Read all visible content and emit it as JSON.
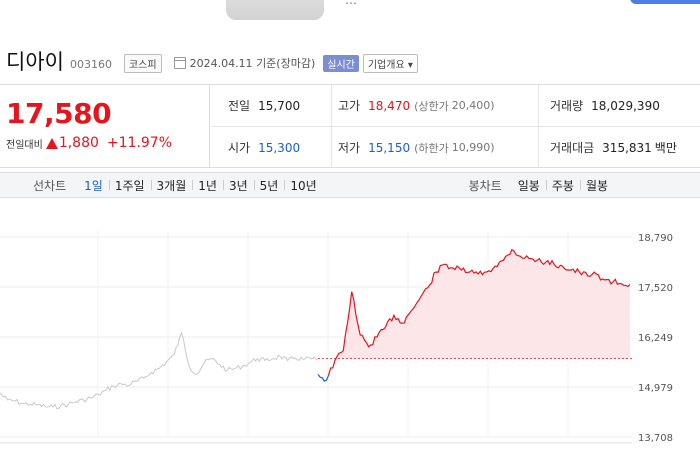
{
  "banner": {
    "text": "…"
  },
  "stock": {
    "name": "디아이",
    "code": "003160",
    "market": "코스피",
    "date": "2024.04.11",
    "date_suffix": "기준(장마감)",
    "live_badge": "실시간",
    "info_button": "기업개요"
  },
  "quote": {
    "price": "17,580",
    "change_label": "전일대비",
    "change_value": "1,880",
    "change_percent": "+11.97%",
    "direction": "up",
    "prev_close": {
      "label": "전일",
      "value": "15,700"
    },
    "high": {
      "label": "고가",
      "value": "18,470",
      "limit_label": "(상한가",
      "limit_value": "20,400)"
    },
    "volume": {
      "label": "거래량",
      "value": "18,029,390"
    },
    "open": {
      "label": "시가",
      "value": "15,300"
    },
    "low": {
      "label": "저가",
      "value": "15,150",
      "limit_label": "(하한가",
      "limit_value": "10,990)"
    },
    "amount": {
      "label": "거래대금",
      "value": "315,831",
      "unit": "백만"
    }
  },
  "toolbar": {
    "line_label": "선차트",
    "line_items": [
      "1일",
      "1주일",
      "3개월",
      "1년",
      "3년",
      "5년",
      "10년"
    ],
    "active_line": "1일",
    "candle_label": "봉차트",
    "candle_items": [
      "일봉",
      "주봉",
      "월봉"
    ]
  },
  "colors": {
    "up": "#e5141d",
    "down": "#1b5fcf",
    "prev_day_line": "#c8c8c8",
    "fill": "#fde3e5"
  },
  "chart_data": {
    "type": "line",
    "y_ticks": [
      "18,790",
      "17,520",
      "16,249",
      "14,979",
      "13,708"
    ],
    "ylim": [
      13708,
      18790
    ],
    "prev_close": 15700,
    "series": [
      {
        "values": [
          14820,
          14650,
          14620,
          14560,
          14540,
          14520,
          14480,
          14470,
          14500,
          14540,
          14600,
          14650,
          14700,
          14780,
          14900,
          15000,
          15060,
          15020,
          15120,
          15200,
          15350,
          15450,
          15620,
          15800,
          16350,
          15500,
          15300,
          15600,
          15700,
          15550,
          15400,
          15450,
          15500,
          15600,
          15700,
          15650,
          15700,
          15760,
          15650,
          15720,
          15680,
          15700,
          15660
        ]
      },
      {
        "values": [
          15300,
          15150,
          15650,
          15900,
          17400,
          16300,
          16000,
          16250,
          16500,
          16800,
          16600,
          16900,
          17200,
          17500,
          17900,
          18100,
          18000,
          17950,
          17900,
          17850,
          17900,
          18050,
          18200,
          18470,
          18300,
          18250,
          18200,
          18150,
          18100,
          18050,
          17950,
          17900,
          17800,
          17850,
          17700,
          17650,
          17600,
          17580
        ]
      }
    ]
  }
}
